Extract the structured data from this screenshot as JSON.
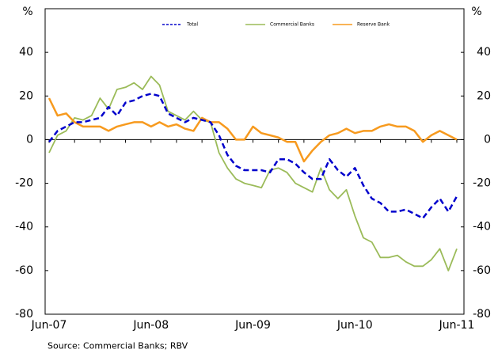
{
  "chart_data": {
    "type": "line",
    "y_label": "%",
    "source": "Source: Commercial Banks; RBV",
    "categories": [
      "Jun-07",
      null,
      null,
      null,
      null,
      null,
      null,
      null,
      null,
      null,
      null,
      null,
      "Jun-08",
      null,
      null,
      null,
      null,
      null,
      null,
      null,
      null,
      null,
      null,
      null,
      "Jun-09",
      null,
      null,
      null,
      null,
      null,
      null,
      null,
      null,
      null,
      null,
      null,
      "Jun-10",
      null,
      null,
      null,
      null,
      null,
      null,
      null,
      null,
      null,
      null,
      null,
      "Jun-11"
    ],
    "series": [
      {
        "name": "Total",
        "color": "#0000cc",
        "dash": true,
        "values": [
          -1,
          4,
          6,
          8,
          8,
          9,
          10,
          15,
          11,
          17,
          18,
          20,
          21,
          20,
          12,
          10,
          8,
          10,
          9,
          8,
          2,
          -7,
          -12,
          -14,
          -14,
          -14,
          -15,
          -9,
          -9,
          -11,
          -15,
          -18,
          -18,
          -9,
          -14,
          -17,
          -13,
          -21,
          -27,
          -29,
          -33,
          -33,
          -32,
          -34,
          -36,
          -31,
          -27,
          -33,
          -26
        ]
      },
      {
        "name": "Commercial Banks",
        "color": "#9bbb59",
        "dash": false,
        "values": [
          -6,
          2,
          4,
          10,
          9,
          11,
          19,
          14,
          23,
          24,
          26,
          23,
          29,
          25,
          13,
          11,
          9,
          13,
          9,
          8,
          -6,
          -13,
          -18,
          -20,
          -21,
          -22,
          -14,
          -13,
          -15,
          -20,
          -22,
          -24,
          -13,
          -23,
          -27,
          -23,
          -35,
          -45,
          -47,
          -54,
          -54,
          -53,
          -56,
          -58,
          -58,
          -55,
          -50,
          -60,
          -50
        ]
      },
      {
        "name": "Reserve Bank",
        "color": "#f79a1e",
        "dash": false,
        "values": [
          19,
          11,
          12,
          8,
          6,
          6,
          6,
          4,
          6,
          7,
          8,
          8,
          6,
          8,
          6,
          7,
          5,
          4,
          10,
          8,
          8,
          5,
          0,
          0,
          6,
          3,
          2,
          1,
          -1,
          -1,
          -10,
          -5,
          -1,
          2,
          3,
          5,
          3,
          4,
          4,
          6,
          7,
          6,
          6,
          4,
          -1,
          2,
          4,
          2,
          0
        ]
      }
    ],
    "ylim": [
      -80,
      60
    ],
    "yticks": [
      -80,
      -60,
      -40,
      -20,
      0,
      20,
      40
    ]
  }
}
